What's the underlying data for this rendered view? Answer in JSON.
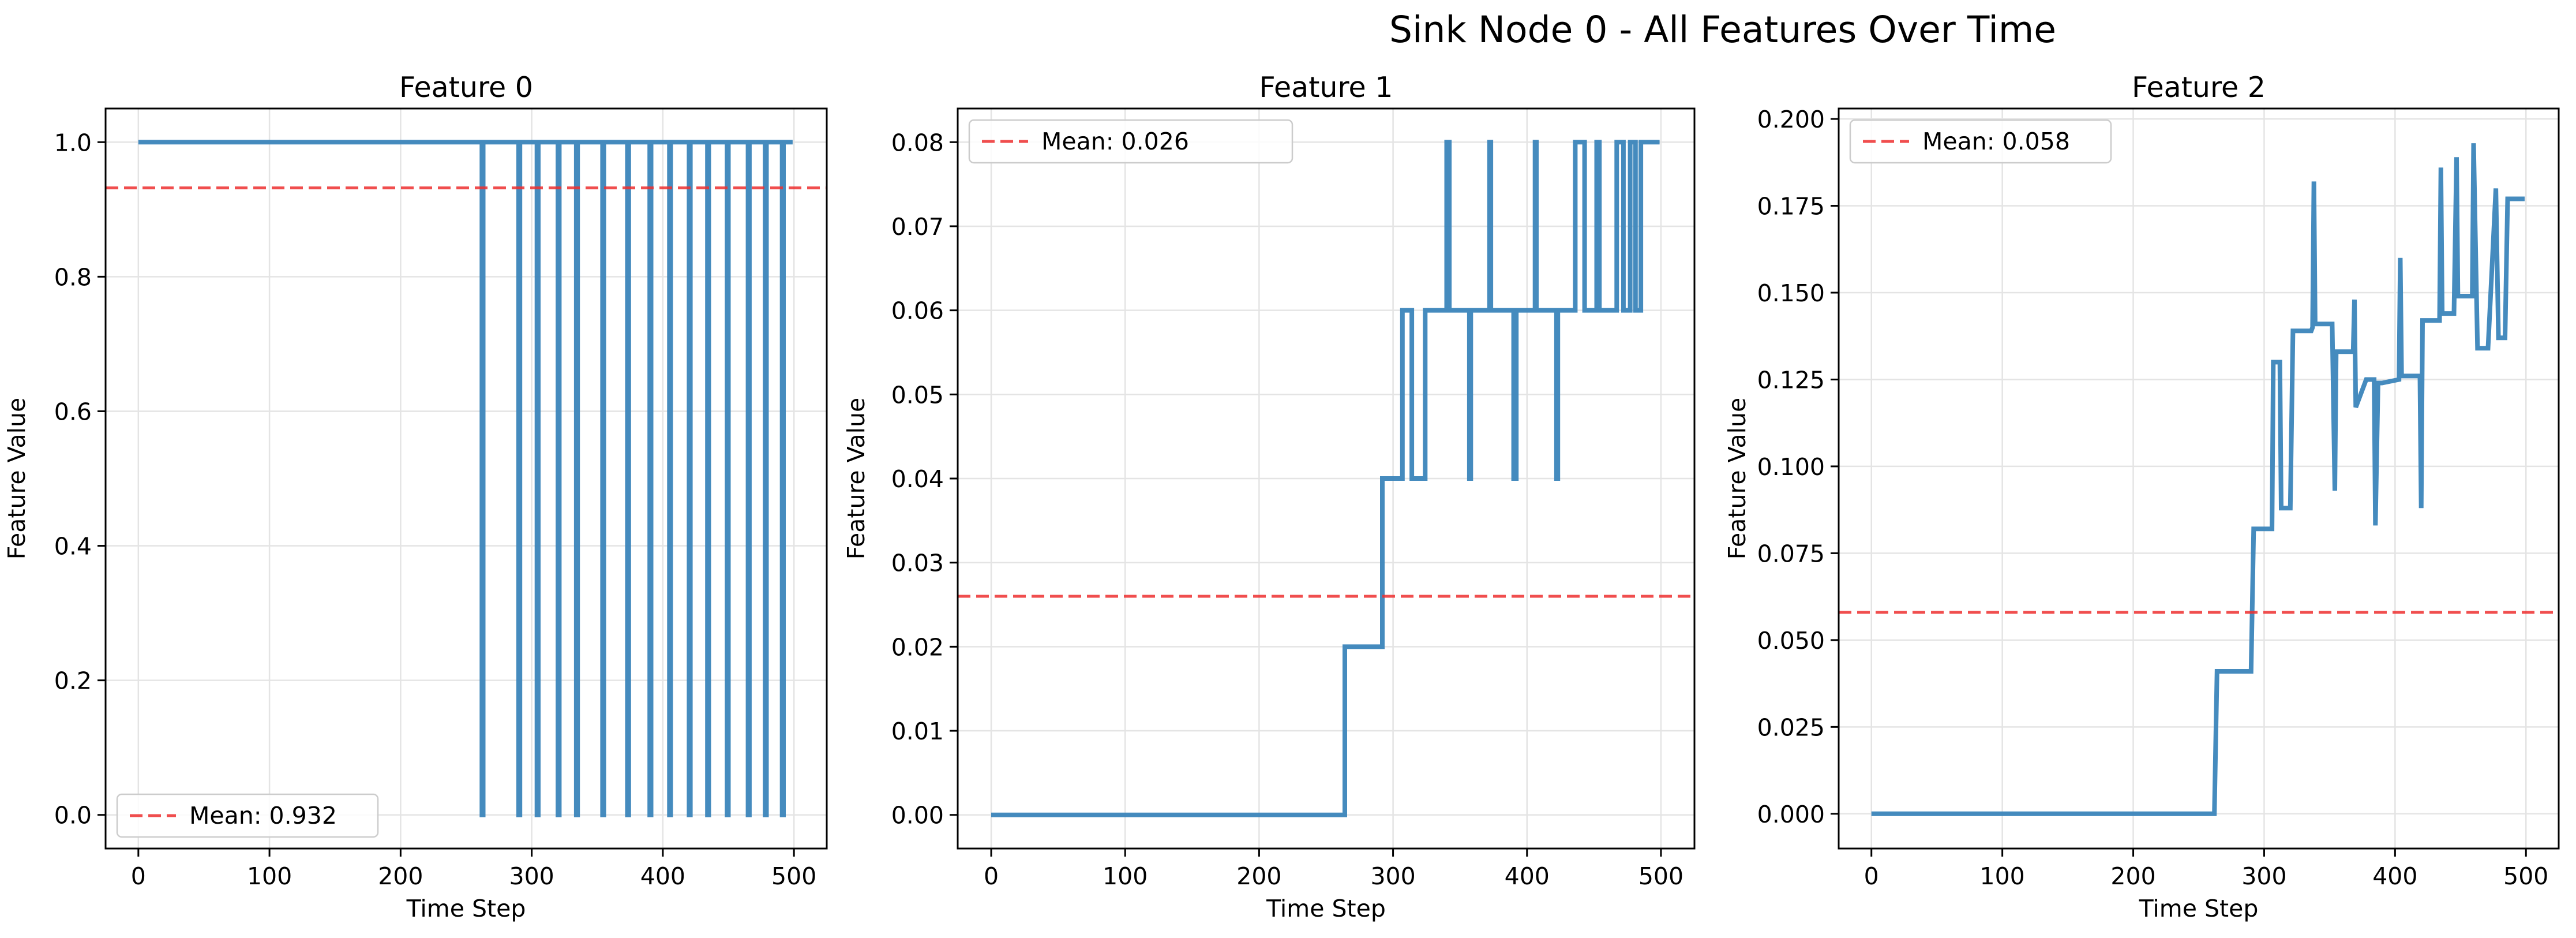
{
  "figure": {
    "suptitle": "Sink Node 0 - All Features Over Time"
  },
  "colors": {
    "line": "#3b85bb",
    "mean": "#ee3030",
    "grid": "#e4e4e4",
    "axis": "#000000"
  },
  "chart_data": [
    {
      "type": "line",
      "title": "Feature 0",
      "xlabel": "Time Step",
      "ylabel": "Feature Value",
      "xlim": [
        -25,
        525
      ],
      "ylim": [
        -0.05,
        1.05
      ],
      "xticks": [
        0,
        100,
        200,
        300,
        400,
        500
      ],
      "yticks": [
        0.0,
        0.2,
        0.4,
        0.6,
        0.8,
        1.0
      ],
      "ytick_labels": [
        "0.0",
        "0.2",
        "0.4",
        "0.6",
        "0.8",
        "1.0"
      ],
      "grid": true,
      "legend_loc": "lower left",
      "mean": {
        "label": "Mean: 0.932",
        "value": 0.932
      },
      "series": [
        {
          "x": [
            0,
            262,
            262,
            263,
            263,
            290,
            290,
            291,
            291,
            304,
            304,
            305,
            305,
            320,
            320,
            321,
            321,
            334,
            334,
            335,
            335,
            354,
            354,
            355,
            355,
            373,
            373,
            374,
            374,
            390,
            390,
            391,
            391,
            405,
            405,
            406,
            406,
            420,
            420,
            421,
            421,
            434,
            434,
            435,
            435,
            449,
            449,
            450,
            450,
            465,
            465,
            466,
            466,
            478,
            478,
            479,
            479,
            491,
            491,
            492,
            492,
            499
          ],
          "y": [
            1,
            1,
            0,
            0,
            1,
            1,
            0,
            0,
            1,
            1,
            0,
            0,
            1,
            1,
            0,
            0,
            1,
            1,
            0,
            0,
            1,
            1,
            0,
            0,
            1,
            1,
            0,
            0,
            1,
            1,
            0,
            0,
            1,
            1,
            0,
            0,
            1,
            1,
            0,
            0,
            1,
            1,
            0,
            0,
            1,
            1,
            0,
            0,
            1,
            1,
            0,
            0,
            1,
            1,
            0,
            0,
            1,
            1,
            0,
            0,
            1,
            1
          ]
        }
      ]
    },
    {
      "type": "line",
      "title": "Feature 1",
      "xlabel": "Time Step",
      "ylabel": "Feature Value",
      "xlim": [
        -25,
        525
      ],
      "ylim": [
        -0.004,
        0.084
      ],
      "xticks": [
        0,
        100,
        200,
        300,
        400,
        500
      ],
      "yticks": [
        0.0,
        0.01,
        0.02,
        0.03,
        0.04,
        0.05,
        0.06,
        0.07,
        0.08
      ],
      "ytick_labels": [
        "0.00",
        "0.01",
        "0.02",
        "0.03",
        "0.04",
        "0.05",
        "0.06",
        "0.07",
        "0.08"
      ],
      "grid": true,
      "legend_loc": "upper left",
      "mean": {
        "label": "Mean: 0.026",
        "value": 0.026
      },
      "series": [
        {
          "x": [
            0,
            264,
            264,
            292,
            292,
            307,
            307,
            314,
            314,
            324,
            324,
            340,
            340,
            342,
            342,
            357,
            357,
            358,
            358,
            372,
            372,
            373,
            373,
            390,
            390,
            392,
            392,
            406,
            406,
            407,
            407,
            422,
            422,
            423,
            423,
            436,
            436,
            443,
            443,
            452,
            452,
            454,
            454,
            467,
            467,
            472,
            472,
            477,
            477,
            481,
            481,
            485,
            485,
            493,
            493,
            499
          ],
          "y": [
            0,
            0,
            0.02,
            0.02,
            0.04,
            0.04,
            0.06,
            0.06,
            0.04,
            0.04,
            0.06,
            0.06,
            0.08,
            0.08,
            0.06,
            0.06,
            0.04,
            0.04,
            0.06,
            0.06,
            0.08,
            0.08,
            0.06,
            0.06,
            0.04,
            0.04,
            0.06,
            0.06,
            0.08,
            0.08,
            0.06,
            0.06,
            0.04,
            0.04,
            0.06,
            0.06,
            0.08,
            0.08,
            0.06,
            0.06,
            0.08,
            0.08,
            0.06,
            0.06,
            0.08,
            0.08,
            0.06,
            0.06,
            0.08,
            0.08,
            0.06,
            0.06,
            0.08,
            0.08,
            0.08,
            0.08
          ]
        }
      ]
    },
    {
      "type": "line",
      "title": "Feature 2",
      "xlabel": "Time Step",
      "ylabel": "Feature Value",
      "xlim": [
        -25,
        525
      ],
      "ylim": [
        -0.01,
        0.203
      ],
      "xticks": [
        0,
        100,
        200,
        300,
        400,
        500
      ],
      "yticks": [
        0.0,
        0.025,
        0.05,
        0.075,
        0.1,
        0.125,
        0.15,
        0.175,
        0.2
      ],
      "ytick_labels": [
        "0.000",
        "0.025",
        "0.050",
        "0.075",
        "0.100",
        "0.125",
        "0.150",
        "0.175",
        "0.200"
      ],
      "grid": true,
      "legend_loc": "upper left",
      "mean": {
        "label": "Mean: 0.058",
        "value": 0.058
      },
      "series": [
        {
          "x": [
            0,
            262,
            264,
            290,
            292,
            293,
            300,
            306,
            307,
            312,
            313,
            320,
            322,
            336,
            337,
            338,
            339,
            349,
            352,
            354,
            355,
            365,
            368,
            369,
            370,
            378,
            384,
            385,
            387,
            390,
            403,
            404,
            405,
            416,
            419,
            420,
            421,
            430,
            434,
            435,
            436,
            445,
            447,
            448,
            450,
            459,
            460,
            463,
            469,
            471,
            477,
            479,
            481,
            482,
            484,
            486,
            489,
            491,
            499
          ],
          "y": [
            0,
            0,
            0.041,
            0.041,
            0.082,
            0.082,
            0.082,
            0.082,
            0.13,
            0.13,
            0.088,
            0.088,
            0.139,
            0.139,
            0.14,
            0.182,
            0.141,
            0.141,
            0.141,
            0.093,
            0.133,
            0.133,
            0.133,
            0.148,
            0.117,
            0.125,
            0.125,
            0.083,
            0.124,
            0.124,
            0.125,
            0.16,
            0.126,
            0.126,
            0.126,
            0.088,
            0.142,
            0.142,
            0.142,
            0.186,
            0.144,
            0.144,
            0.189,
            0.149,
            0.149,
            0.149,
            0.193,
            0.134,
            0.134,
            0.134,
            0.18,
            0.137,
            0.137,
            0.137,
            0.137,
            0.177,
            0.177,
            0.177,
            0.177
          ]
        }
      ]
    }
  ]
}
